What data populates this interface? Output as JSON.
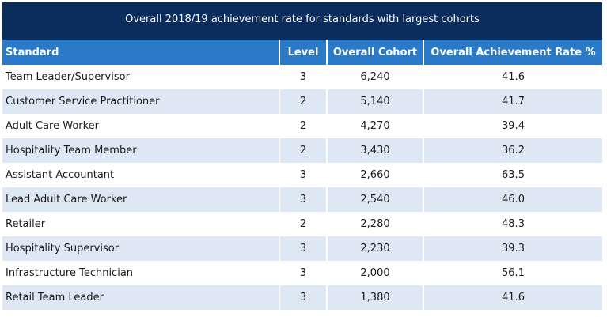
{
  "table": {
    "title": "Overall 2018/19 achievement rate for standards with largest cohorts",
    "headers": [
      "Standard",
      "Level",
      "Overall Cohort",
      "Overall Achievement Rate %"
    ],
    "rows": [
      [
        "Team Leader/Supervisor",
        "3",
        "6,240",
        "41.6"
      ],
      [
        "Customer Service Practitioner",
        "2",
        "5,140",
        "41.7"
      ],
      [
        "Adult Care Worker",
        "2",
        "4,270",
        "39.4"
      ],
      [
        "Hospitality Team Member",
        "2",
        "3,430",
        "36.2"
      ],
      [
        "Assistant Accountant",
        "3",
        "2,660",
        "63.5"
      ],
      [
        "Lead Adult Care Worker",
        "3",
        "2,540",
        "46.0"
      ],
      [
        "Retailer",
        "2",
        "2,280",
        "48.3"
      ],
      [
        "Hospitality Supervisor",
        "3",
        "2,230",
        "39.3"
      ],
      [
        "Infrastructure Technician",
        "3",
        "2,000",
        "56.1"
      ],
      [
        "Retail Team Leader",
        "3",
        "1,380",
        "41.6"
      ]
    ]
  },
  "colors": {
    "title_bg": "#0b2d5e",
    "header_bg": "#2a7ac7",
    "row_alt_bg": "#dde8f4"
  }
}
